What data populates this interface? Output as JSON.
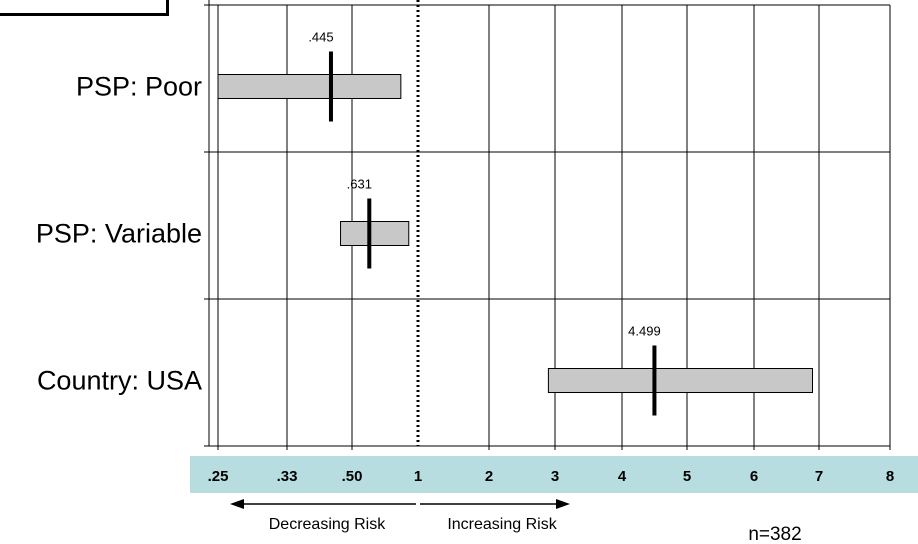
{
  "chart_data": {
    "type": "forest",
    "x_scale": "custom-odds-ratio",
    "tick_labels": [
      ".25",
      ".33",
      ".50",
      "1",
      "2",
      "3",
      "4",
      "5",
      "6",
      "7",
      "8"
    ],
    "reference_line": 1,
    "grid": true,
    "rows": [
      {
        "label": "PSP: Poor",
        "point": 0.445,
        "point_label": ".445",
        "ci_low": 0.25,
        "ci_high": 0.87
      },
      {
        "label": "PSP: Variable",
        "point": 0.631,
        "point_label": ".631",
        "ci_low": 0.47,
        "ci_high": 0.93
      },
      {
        "label": "Country: USA",
        "point": 4.499,
        "point_label": "4.499",
        "ci_low": 2.9,
        "ci_high": 6.9
      }
    ],
    "annotations": {
      "left_arrow": "Decreasing Risk",
      "right_arrow": "Increasing Risk",
      "sample_size": "n=382"
    }
  },
  "colors": {
    "bar_fill": "#c8c8c8",
    "bar_stroke": "#000000",
    "axis_band": "#b7dde0",
    "grid": "#000000"
  }
}
